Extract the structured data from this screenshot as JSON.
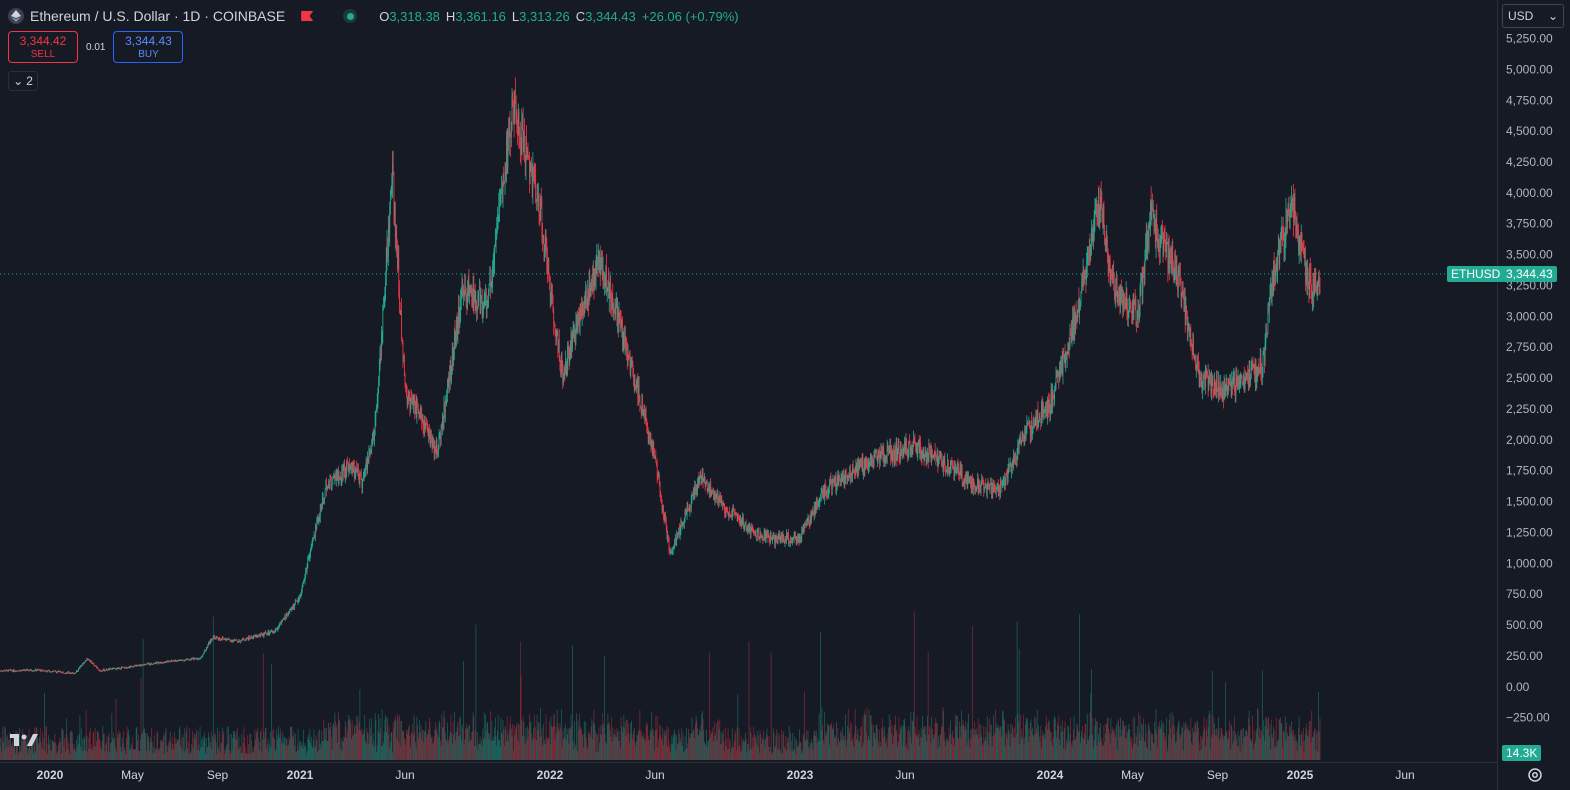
{
  "header": {
    "symbol_title": "Ethereum / U.S. Dollar · 1D · COINBASE",
    "ohlc": [
      {
        "k": "O",
        "v": "3,318.38"
      },
      {
        "k": "H",
        "v": "3,361.16"
      },
      {
        "k": "L",
        "v": "3,313.26"
      },
      {
        "k": "C",
        "v": "3,344.43"
      }
    ],
    "change": "+26.06 (+0.79%)"
  },
  "trade": {
    "sell_price": "3,344.42",
    "sell_label": "SELL",
    "spread": "0.01",
    "buy_price": "3,344.43",
    "buy_label": "BUY"
  },
  "indicators_count": "2",
  "currency": "USD",
  "price_tag": {
    "symbol": "ETHUSD",
    "price": "3,344.43"
  },
  "volume_tag": "14.3K",
  "colors": {
    "up": "#22ab94",
    "down": "#f23645",
    "background": "#161a25"
  },
  "chart_data": {
    "type": "candlestick",
    "title": "Ethereum / U.S. Dollar · 1D · COINBASE",
    "y_ticks": [
      "5,250.00",
      "5,000.00",
      "4,750.00",
      "4,500.00",
      "4,250.00",
      "4,000.00",
      "3,750.00",
      "3,500.00",
      "3,250.00",
      "3,000.00",
      "2,750.00",
      "2,500.00",
      "2,250.00",
      "2,000.00",
      "1,750.00",
      "1,500.00",
      "1,250.00",
      "1,000.00",
      "750.00",
      "500.00",
      "250.00",
      "0.00",
      "−250.00"
    ],
    "ylim": [
      -350,
      5400
    ],
    "x_ticks": [
      {
        "label": "2020",
        "bold": true,
        "t": 2020.0
      },
      {
        "label": "May",
        "bold": false,
        "t": 2020.33
      },
      {
        "label": "Sep",
        "bold": false,
        "t": 2020.67
      },
      {
        "label": "2021",
        "bold": true,
        "t": 2021.0
      },
      {
        "label": "Jun",
        "bold": false,
        "t": 2021.42
      },
      {
        "label": "2022",
        "bold": true,
        "t": 2022.0
      },
      {
        "label": "Jun",
        "bold": false,
        "t": 2022.42
      },
      {
        "label": "2023",
        "bold": true,
        "t": 2023.0
      },
      {
        "label": "Jun",
        "bold": false,
        "t": 2023.42
      },
      {
        "label": "2024",
        "bold": true,
        "t": 2024.0
      },
      {
        "label": "May",
        "bold": false,
        "t": 2024.33
      },
      {
        "label": "Sep",
        "bold": false,
        "t": 2024.67
      },
      {
        "label": "2025",
        "bold": true,
        "t": 2025.0
      },
      {
        "label": "Jun",
        "bold": false,
        "t": 2025.42
      }
    ],
    "price_path": [
      [
        2019.8,
        130
      ],
      [
        2019.95,
        135
      ],
      [
        2020.1,
        110
      ],
      [
        2020.15,
        230
      ],
      [
        2020.2,
        130
      ],
      [
        2020.45,
        200
      ],
      [
        2020.6,
        230
      ],
      [
        2020.65,
        400
      ],
      [
        2020.75,
        370
      ],
      [
        2020.9,
        450
      ],
      [
        2021.0,
        730
      ],
      [
        2021.1,
        1600
      ],
      [
        2021.2,
        1800
      ],
      [
        2021.25,
        1650
      ],
      [
        2021.3,
        2100
      ],
      [
        2021.37,
        4150
      ],
      [
        2021.42,
        2400
      ],
      [
        2021.55,
        1900
      ],
      [
        2021.65,
        3200
      ],
      [
        2021.75,
        3100
      ],
      [
        2021.85,
        4700
      ],
      [
        2021.95,
        4000
      ],
      [
        2022.05,
        2500
      ],
      [
        2022.1,
        2900
      ],
      [
        2022.2,
        3450
      ],
      [
        2022.3,
        2800
      ],
      [
        2022.42,
        1850
      ],
      [
        2022.48,
        1080
      ],
      [
        2022.6,
        1700
      ],
      [
        2022.7,
        1450
      ],
      [
        2022.82,
        1250
      ],
      [
        2022.9,
        1200
      ],
      [
        2023.0,
        1200
      ],
      [
        2023.1,
        1600
      ],
      [
        2023.3,
        1850
      ],
      [
        2023.45,
        1950
      ],
      [
        2023.55,
        1850
      ],
      [
        2023.7,
        1630
      ],
      [
        2023.8,
        1600
      ],
      [
        2023.9,
        2050
      ],
      [
        2024.0,
        2300
      ],
      [
        2024.1,
        2950
      ],
      [
        2024.2,
        3950
      ],
      [
        2024.25,
        3250
      ],
      [
        2024.35,
        3000
      ],
      [
        2024.4,
        3800
      ],
      [
        2024.5,
        3400
      ],
      [
        2024.6,
        2500
      ],
      [
        2024.7,
        2400
      ],
      [
        2024.8,
        2500
      ],
      [
        2024.85,
        2600
      ],
      [
        2024.9,
        3400
      ],
      [
        2024.97,
        3900
      ],
      [
        2025.0,
        3600
      ],
      [
        2025.05,
        3200
      ],
      [
        2025.08,
        3344
      ]
    ],
    "last_price": 3344.43,
    "volume_last": "14.3K"
  }
}
